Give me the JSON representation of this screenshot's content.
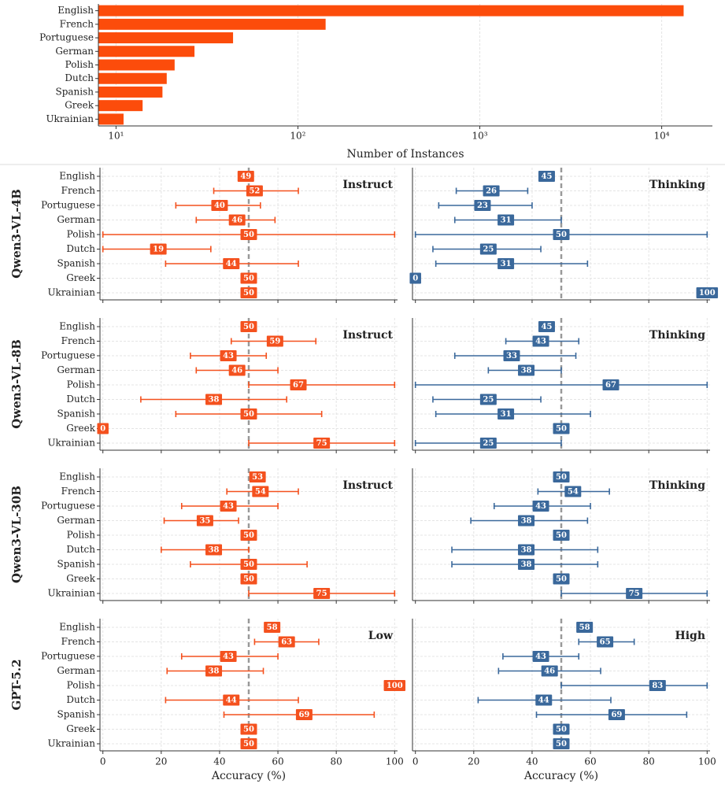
{
  "chart_data": [
    {
      "type": "bar",
      "orientation": "horizontal",
      "categories": [
        "English",
        "French",
        "Portuguese",
        "German",
        "Polish",
        "Dutch",
        "Spanish",
        "Greek",
        "Ukrainian"
      ],
      "values": [
        13200,
        142,
        44,
        27,
        21,
        19,
        18,
        14,
        11
      ],
      "color": "#fc4c0b",
      "xscale": "log",
      "xlim": [
        8,
        19000
      ],
      "xticks": [
        {
          "value": 10,
          "label": "10¹"
        },
        {
          "value": 100,
          "label": "10²"
        },
        {
          "value": 1000,
          "label": "10³"
        },
        {
          "value": 10000,
          "label": "10⁴"
        }
      ],
      "xlabel": "Number of Instances",
      "grid": true
    },
    {
      "type": "errorbar",
      "row_label": "Qwen3-VL-4B",
      "label": "Instruct",
      "categories": [
        "English",
        "French",
        "Portuguese",
        "German",
        "Polish",
        "Dutch",
        "Spanish",
        "Greek",
        "Ukrainian"
      ],
      "values": [
        49,
        52,
        40,
        46,
        50,
        19,
        44,
        50,
        50
      ],
      "lower": [
        null,
        38,
        25,
        32,
        0,
        0,
        21.5,
        null,
        null
      ],
      "upper": [
        null,
        67,
        54,
        59,
        100,
        37,
        67,
        null,
        null
      ],
      "color": "#f4511e",
      "xlim": [
        -1,
        101
      ],
      "xticks": [
        0,
        20,
        40,
        60,
        80,
        100
      ],
      "refline": 50,
      "grid": true
    },
    {
      "type": "errorbar",
      "label": "Thinking",
      "values": [
        45,
        26,
        23,
        31,
        50,
        25,
        31,
        0,
        100
      ],
      "lower": [
        null,
        14,
        8,
        13.5,
        0,
        6,
        7,
        null,
        null
      ],
      "upper": [
        null,
        38.5,
        40,
        50,
        100,
        43,
        59,
        null,
        null
      ],
      "color": "#3a689b",
      "xlim": [
        -1,
        101
      ],
      "xticks": [
        0,
        20,
        40,
        60,
        80,
        100
      ],
      "refline": 50,
      "grid": true
    },
    {
      "type": "errorbar",
      "row_label": "Qwen3-VL-8B",
      "label": "Instruct",
      "categories": [
        "English",
        "French",
        "Portuguese",
        "German",
        "Polish",
        "Dutch",
        "Spanish",
        "Greek",
        "Ukrainian"
      ],
      "values": [
        50,
        59,
        43,
        46,
        67,
        38,
        50,
        0,
        75
      ],
      "lower": [
        null,
        44,
        30,
        32,
        50,
        13,
        25,
        null,
        50
      ],
      "upper": [
        null,
        73,
        56,
        60,
        100,
        63,
        75,
        null,
        100
      ],
      "color": "#f4511e",
      "xlim": [
        -1,
        101
      ],
      "xticks": [
        0,
        20,
        40,
        60,
        80,
        100
      ],
      "refline": 50,
      "grid": true
    },
    {
      "type": "errorbar",
      "label": "Thinking",
      "values": [
        45,
        43,
        33,
        38,
        67,
        25,
        31,
        50,
        25
      ],
      "lower": [
        null,
        31,
        13.5,
        25,
        0,
        6,
        7,
        null,
        0
      ],
      "upper": [
        null,
        56,
        55,
        50,
        100,
        43,
        60,
        null,
        50
      ],
      "color": "#3a689b",
      "xlim": [
        -1,
        101
      ],
      "xticks": [
        0,
        20,
        40,
        60,
        80,
        100
      ],
      "refline": 50,
      "grid": true
    },
    {
      "type": "errorbar",
      "row_label": "Qwen3-VL-30B",
      "label": "Instruct",
      "categories": [
        "English",
        "French",
        "Portuguese",
        "German",
        "Polish",
        "Dutch",
        "Spanish",
        "Greek",
        "Ukrainian"
      ],
      "values": [
        53,
        54,
        43,
        35,
        50,
        38,
        50,
        50,
        75
      ],
      "lower": [
        null,
        42.5,
        27,
        21,
        null,
        20,
        30,
        null,
        50
      ],
      "upper": [
        null,
        67,
        60,
        46.5,
        null,
        50,
        70,
        null,
        100
      ],
      "color": "#f4511e",
      "xlim": [
        -1,
        101
      ],
      "xticks": [
        0,
        20,
        40,
        60,
        80,
        100
      ],
      "refline": 50,
      "grid": true
    },
    {
      "type": "errorbar",
      "label": "Thinking",
      "values": [
        50,
        54,
        43,
        38,
        50,
        38,
        38,
        50,
        75
      ],
      "lower": [
        null,
        42,
        27,
        19,
        null,
        12.5,
        12.5,
        null,
        50
      ],
      "upper": [
        null,
        66.5,
        60,
        59,
        null,
        62.5,
        62.5,
        null,
        100
      ],
      "color": "#3a689b",
      "xlim": [
        -1,
        101
      ],
      "xticks": [
        0,
        20,
        40,
        60,
        80,
        100
      ],
      "refline": 50,
      "grid": true
    },
    {
      "type": "errorbar",
      "row_label": "GPT-5.2",
      "label": "Low",
      "categories": [
        "English",
        "French",
        "Portuguese",
        "German",
        "Polish",
        "Dutch",
        "Spanish",
        "Greek",
        "Ukrainian"
      ],
      "values": [
        58,
        63,
        43,
        38,
        100,
        44,
        69,
        50,
        50
      ],
      "lower": [
        null,
        52,
        27,
        22,
        null,
        21.5,
        41.5,
        null,
        null
      ],
      "upper": [
        null,
        74,
        60,
        55,
        null,
        67,
        93,
        null,
        null
      ],
      "color": "#f4511e",
      "xlim": [
        -1,
        101
      ],
      "xticks": [
        0,
        20,
        40,
        60,
        80,
        100
      ],
      "refline": 50,
      "grid": true,
      "xlabel": "Accuracy (%)"
    },
    {
      "type": "errorbar",
      "label": "High",
      "values": [
        58,
        65,
        43,
        46,
        83,
        44,
        69,
        50,
        50
      ],
      "lower": [
        null,
        56,
        30,
        28.5,
        50,
        21.5,
        41.5,
        null,
        null
      ],
      "upper": [
        null,
        75,
        56,
        63.5,
        100,
        67,
        93,
        null,
        null
      ],
      "color": "#3a689b",
      "xlim": [
        -1,
        101
      ],
      "xticks": [
        0,
        20,
        40,
        60,
        80,
        100
      ],
      "refline": 50,
      "grid": true,
      "xlabel": "Accuracy (%)"
    }
  ]
}
